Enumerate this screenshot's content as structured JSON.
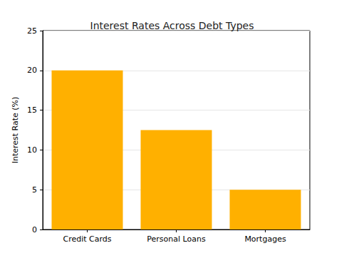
{
  "chart_data": {
    "type": "bar",
    "title": "Interest Rates Across Debt Types",
    "y_label": "Interest Rate (%)",
    "categories": [
      "Credit Cards",
      "Personal Loans",
      "Mortgages"
    ],
    "values": [
      20,
      12.5,
      5
    ],
    "color": "#ffb000",
    "ylim": [
      0,
      25
    ],
    "yticks": [
      0,
      5,
      10,
      15,
      20,
      25
    ],
    "grid": true
  }
}
